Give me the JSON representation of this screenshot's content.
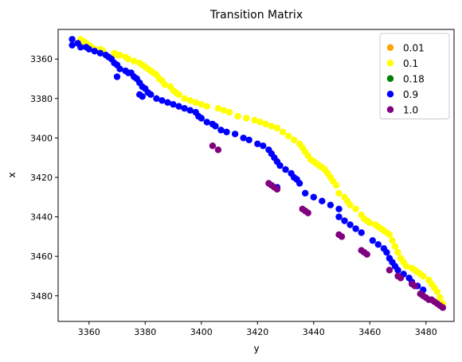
{
  "chart_data": {
    "type": "scatter",
    "title": "Transition Matrix",
    "xlabel": "y",
    "ylabel": "x",
    "xlim": [
      3349,
      3490
    ],
    "ylim": [
      3493,
      3345
    ],
    "x_ticks": [
      3360,
      3380,
      3400,
      3420,
      3440,
      3460,
      3480
    ],
    "y_ticks": [
      3360,
      3380,
      3400,
      3420,
      3440,
      3460,
      3480
    ],
    "y_axis_inverted": true,
    "grid": false,
    "legend_position": "top-right",
    "series": [
      {
        "name": "0.01",
        "color": "#ffa500",
        "points": []
      },
      {
        "name": "0.1",
        "color": "#ffff00",
        "points": [
          [
            3357,
            3350
          ],
          [
            3358,
            3351
          ],
          [
            3359,
            3352
          ],
          [
            3360,
            3353
          ],
          [
            3361,
            3354
          ],
          [
            3362,
            3355
          ],
          [
            3364,
            3355
          ],
          [
            3365,
            3356
          ],
          [
            3369,
            3357
          ],
          [
            3370,
            3358
          ],
          [
            3371,
            3358
          ],
          [
            3373,
            3359
          ],
          [
            3374,
            3360
          ],
          [
            3376,
            3361
          ],
          [
            3378,
            3362
          ],
          [
            3379,
            3363
          ],
          [
            3380,
            3364
          ],
          [
            3381,
            3365
          ],
          [
            3382,
            3366
          ],
          [
            3383,
            3367
          ],
          [
            3384,
            3368
          ],
          [
            3385,
            3370
          ],
          [
            3386,
            3371
          ],
          [
            3387,
            3373
          ],
          [
            3389,
            3374
          ],
          [
            3390,
            3376
          ],
          [
            3391,
            3377
          ],
          [
            3392,
            3378
          ],
          [
            3394,
            3380
          ],
          [
            3396,
            3381
          ],
          [
            3398,
            3382
          ],
          [
            3400,
            3383
          ],
          [
            3402,
            3384
          ],
          [
            3406,
            3385
          ],
          [
            3408,
            3386
          ],
          [
            3410,
            3387
          ],
          [
            3413,
            3389
          ],
          [
            3416,
            3390
          ],
          [
            3419,
            3391
          ],
          [
            3421,
            3392
          ],
          [
            3423,
            3393
          ],
          [
            3425,
            3394
          ],
          [
            3427,
            3395
          ],
          [
            3429,
            3397
          ],
          [
            3431,
            3399
          ],
          [
            3433,
            3401
          ],
          [
            3435,
            3403
          ],
          [
            3436,
            3405
          ],
          [
            3437,
            3407
          ],
          [
            3438,
            3409
          ],
          [
            3439,
            3411
          ],
          [
            3440,
            3412
          ],
          [
            3441,
            3413
          ],
          [
            3442,
            3414
          ],
          [
            3443,
            3415
          ],
          [
            3444,
            3416
          ],
          [
            3445,
            3418
          ],
          [
            3446,
            3420
          ],
          [
            3447,
            3422
          ],
          [
            3448,
            3424
          ],
          [
            3449,
            3428
          ],
          [
            3451,
            3430
          ],
          [
            3452,
            3432
          ],
          [
            3453,
            3434
          ],
          [
            3455,
            3436
          ],
          [
            3457,
            3439
          ],
          [
            3458,
            3441
          ],
          [
            3459,
            3442
          ],
          [
            3460,
            3443
          ],
          [
            3462,
            3444
          ],
          [
            3463,
            3445
          ],
          [
            3464,
            3446
          ],
          [
            3465,
            3447
          ],
          [
            3466,
            3448
          ],
          [
            3467,
            3449
          ],
          [
            3468,
            3452
          ],
          [
            3469,
            3455
          ],
          [
            3470,
            3458
          ],
          [
            3471,
            3461
          ],
          [
            3472,
            3463
          ],
          [
            3473,
            3465
          ],
          [
            3475,
            3466
          ],
          [
            3476,
            3467
          ],
          [
            3477,
            3468
          ],
          [
            3478,
            3469
          ],
          [
            3479,
            3470
          ],
          [
            3481,
            3472
          ],
          [
            3482,
            3474
          ],
          [
            3483,
            3476
          ],
          [
            3484,
            3478
          ],
          [
            3485,
            3481
          ],
          [
            3486,
            3484
          ]
        ]
      },
      {
        "name": "0.18",
        "color": "#008000",
        "points": []
      },
      {
        "name": "0.9",
        "color": "#0000ff",
        "points": [
          [
            3354,
            3350
          ],
          [
            3354,
            3353
          ],
          [
            3356,
            3352
          ],
          [
            3357,
            3354
          ],
          [
            3359,
            3354
          ],
          [
            3360,
            3355
          ],
          [
            3362,
            3356
          ],
          [
            3364,
            3357
          ],
          [
            3366,
            3358
          ],
          [
            3367,
            3359
          ],
          [
            3368,
            3360
          ],
          [
            3369,
            3362
          ],
          [
            3370,
            3363
          ],
          [
            3371,
            3365
          ],
          [
            3370,
            3369
          ],
          [
            3373,
            3366
          ],
          [
            3374,
            3367
          ],
          [
            3375,
            3367
          ],
          [
            3376,
            3369
          ],
          [
            3377,
            3370
          ],
          [
            3378,
            3372
          ],
          [
            3379,
            3374
          ],
          [
            3378,
            3378
          ],
          [
            3379,
            3379
          ],
          [
            3380,
            3375
          ],
          [
            3381,
            3377
          ],
          [
            3382,
            3378
          ],
          [
            3384,
            3380
          ],
          [
            3386,
            3381
          ],
          [
            3388,
            3382
          ],
          [
            3390,
            3383
          ],
          [
            3392,
            3384
          ],
          [
            3394,
            3385
          ],
          [
            3396,
            3386
          ],
          [
            3398,
            3387
          ],
          [
            3399,
            3389
          ],
          [
            3400,
            3390
          ],
          [
            3402,
            3392
          ],
          [
            3404,
            3393
          ],
          [
            3405,
            3394
          ],
          [
            3407,
            3396
          ],
          [
            3409,
            3397
          ],
          [
            3412,
            3398
          ],
          [
            3415,
            3400
          ],
          [
            3417,
            3401
          ],
          [
            3420,
            3403
          ],
          [
            3422,
            3404
          ],
          [
            3424,
            3406
          ],
          [
            3425,
            3408
          ],
          [
            3426,
            3410
          ],
          [
            3427,
            3412
          ],
          [
            3428,
            3414
          ],
          [
            3430,
            3416
          ],
          [
            3432,
            3418
          ],
          [
            3433,
            3420
          ],
          [
            3434,
            3421
          ],
          [
            3435,
            3423
          ],
          [
            3427,
            3425
          ],
          [
            3437,
            3428
          ],
          [
            3440,
            3430
          ],
          [
            3443,
            3432
          ],
          [
            3446,
            3434
          ],
          [
            3449,
            3436
          ],
          [
            3449,
            3440
          ],
          [
            3451,
            3442
          ],
          [
            3453,
            3444
          ],
          [
            3455,
            3446
          ],
          [
            3457,
            3448
          ],
          [
            3461,
            3452
          ],
          [
            3463,
            3454
          ],
          [
            3465,
            3456
          ],
          [
            3466,
            3458
          ],
          [
            3467,
            3461
          ],
          [
            3468,
            3463
          ],
          [
            3469,
            3465
          ],
          [
            3470,
            3467
          ],
          [
            3472,
            3469
          ],
          [
            3474,
            3471
          ],
          [
            3475,
            3473
          ],
          [
            3477,
            3475
          ],
          [
            3479,
            3477
          ]
        ]
      },
      {
        "name": "1.0",
        "color": "#800080",
        "points": [
          [
            3404,
            3404
          ],
          [
            3406,
            3406
          ],
          [
            3424,
            3423
          ],
          [
            3425,
            3424
          ],
          [
            3426,
            3425
          ],
          [
            3427,
            3426
          ],
          [
            3436,
            3436
          ],
          [
            3437,
            3437
          ],
          [
            3438,
            3438
          ],
          [
            3449,
            3449
          ],
          [
            3450,
            3450
          ],
          [
            3457,
            3457
          ],
          [
            3458,
            3458
          ],
          [
            3459,
            3459
          ],
          [
            3467,
            3467
          ],
          [
            3470,
            3470
          ],
          [
            3471,
            3471
          ],
          [
            3475,
            3474
          ],
          [
            3476,
            3475
          ],
          [
            3478,
            3479
          ],
          [
            3479,
            3480
          ],
          [
            3480,
            3481
          ],
          [
            3481,
            3482
          ],
          [
            3482,
            3482
          ],
          [
            3483,
            3483
          ],
          [
            3484,
            3484
          ],
          [
            3485,
            3485
          ],
          [
            3486,
            3486
          ]
        ]
      }
    ]
  }
}
